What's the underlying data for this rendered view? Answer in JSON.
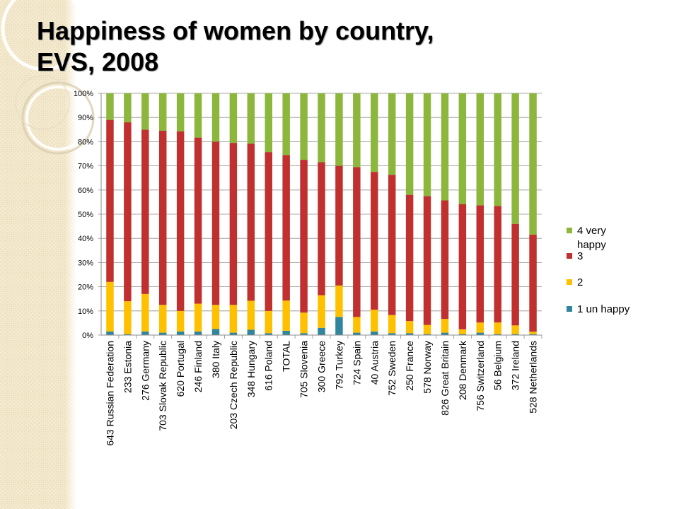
{
  "slide": {
    "title_line1": "Happiness of women by country,",
    "title_line2": "EVS, 2008"
  },
  "chart_data": {
    "type": "bar",
    "stacked": true,
    "percent_stacked": true,
    "categories": [
      "643 Russian Federation",
      "233 Estonia",
      "276 Germany",
      "703 Slovak Republic",
      "620 Portugal",
      "246 Finland",
      "380 Italy",
      "203 Czech Republic",
      "348 Hungary",
      "616 Poland",
      "TOTAL",
      "705 Slovenia",
      "300 Greece",
      "792 Turkey",
      "724 Spain",
      "40 Austria",
      "752 Sweden",
      "250 France",
      "578 Norway",
      "826 Great Britain",
      "208 Denmark",
      "756 Switzerland",
      "56 Belgium",
      "372 Ireland",
      "528 Netherlands"
    ],
    "series": [
      {
        "name": "1 un happy",
        "color": "#31859C",
        "values": [
          1.5,
          0.4,
          1.5,
          1.0,
          1.5,
          1.5,
          2.5,
          1.0,
          2.2,
          0.8,
          1.8,
          0.8,
          3.0,
          7.5,
          1.0,
          1.5,
          0.8,
          0.8,
          0.4,
          1.0,
          0.4,
          1.0,
          0.4,
          0.4,
          0.4
        ]
      },
      {
        "name": "2",
        "color": "#FFC000",
        "values": [
          20.5,
          13.6,
          15.5,
          11.5,
          8.5,
          11.5,
          10.0,
          11.5,
          12.0,
          9.2,
          12.5,
          8.5,
          13.5,
          13.0,
          6.5,
          9.0,
          7.5,
          5.0,
          3.8,
          5.7,
          2.0,
          4.2,
          4.8,
          3.6,
          1.0
        ]
      },
      {
        "name": "3",
        "color": "#C0302E",
        "values": [
          67.0,
          74.0,
          68.0,
          72.0,
          74.3,
          68.7,
          67.5,
          67.0,
          65.0,
          65.7,
          60.2,
          63.2,
          55.0,
          49.5,
          62.0,
          57.0,
          58.0,
          52.2,
          53.3,
          49.0,
          51.8,
          48.5,
          48.2,
          42.0,
          40.2
        ]
      },
      {
        "name": "4 very happy",
        "color": "#8CB63C",
        "values": [
          11.0,
          12.0,
          15.0,
          15.5,
          15.7,
          18.3,
          20.0,
          20.5,
          20.8,
          24.3,
          25.5,
          27.5,
          28.5,
          30.0,
          30.5,
          32.5,
          33.7,
          42.0,
          42.5,
          44.3,
          45.8,
          46.3,
          46.6,
          54.0,
          58.4
        ]
      }
    ],
    "legend_order": [
      "4 very happy",
      "3",
      "2",
      "1 un happy"
    ],
    "legend_labels": {
      "4 very happy": [
        "4 very",
        "happy"
      ],
      "3": [
        "3"
      ],
      "2": [
        "2"
      ],
      "1 un happy": [
        "1 un happy"
      ]
    },
    "y_ticks": [
      "0%",
      "10%",
      "20%",
      "30%",
      "40%",
      "50%",
      "60%",
      "70%",
      "80%",
      "90%",
      "100%"
    ],
    "ylim": [
      0,
      100
    ],
    "grid": true,
    "legend_position": "right",
    "xlabel": "",
    "ylabel": ""
  }
}
